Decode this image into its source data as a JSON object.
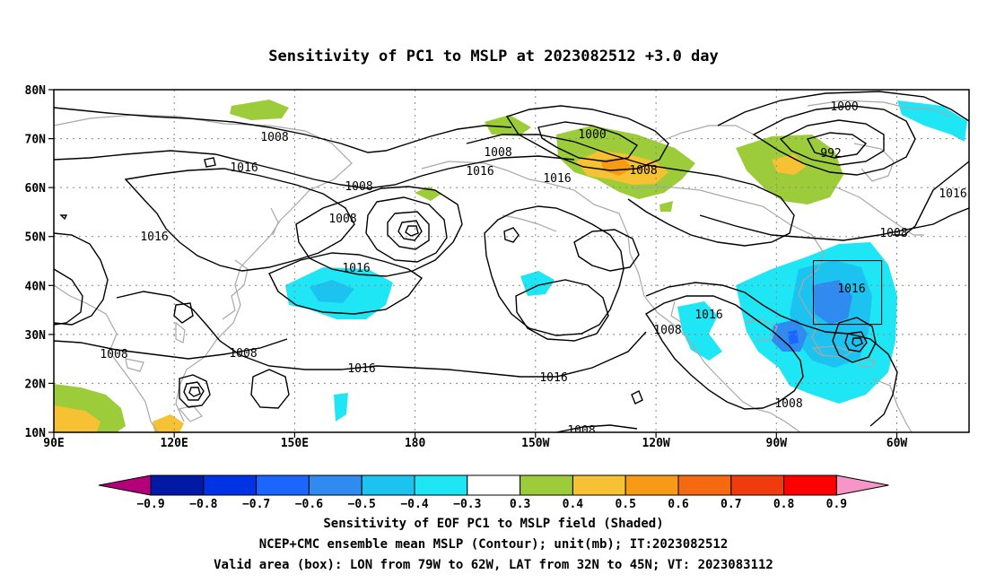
{
  "title": "Sensitivity of PC1 to MSLP at 2023082512 +3.0 day",
  "axes": {
    "lat_labels": [
      "80N",
      "70N",
      "60N",
      "50N",
      "40N",
      "30N",
      "20N",
      "10N"
    ],
    "lon_labels": [
      "90E",
      "120E",
      "150E",
      "180",
      "150W",
      "120W",
      "90W",
      "60W"
    ]
  },
  "colorbar": {
    "ticks": [
      "-0.9",
      "-0.8",
      "-0.7",
      "-0.6",
      "-0.5",
      "-0.4",
      "-0.3",
      "0.3",
      "0.4",
      "0.5",
      "0.6",
      "0.7",
      "0.8",
      "0.9"
    ],
    "colors": [
      "#b3007a",
      "#0019a6",
      "#0033e6",
      "#1a66ff",
      "#2f8bf0",
      "#1cc3f0",
      "#1ee6f5",
      "#ffffff",
      "#9ccc3a",
      "#f6c233",
      "#f79a16",
      "#f56a10",
      "#f03c0c",
      "#ff0000",
      "#f595c8"
    ]
  },
  "contour_labels": {
    "c1": "1008",
    "c2": "1016",
    "c3": "1008",
    "c4": "1008",
    "c5": "1016",
    "c6": "1016",
    "c7": "1008",
    "c8": "1008",
    "c9": "1016",
    "c10": "1008",
    "c11": "1016",
    "c12": "1000",
    "c13": "1008",
    "c14": "1016",
    "c15": "1016",
    "c16": "1016",
    "c17": "1008",
    "c18": "1000",
    "c19": "992",
    "c20": "1016",
    "c21": "1008",
    "c22": "1016",
    "c23": "1008",
    "c24": "1016",
    "c25": "1008"
  },
  "captions": {
    "line1": "Sensitivity of EOF PC1 to MSLP field (Shaded)",
    "line2": "NCEP+CMC ensemble mean MSLP (Contour); unit(mb); IT:2023082512",
    "line3": "Valid area (box): LON from 79W to 62W, LAT from 32N to 45N; VT: 2023083112"
  },
  "valid_area": {
    "lon_from": "79W",
    "lon_to": "62W",
    "lat_from": "32N",
    "lat_to": "45N"
  },
  "icons": {
    "colorbar_low_end": "triangle-left",
    "colorbar_high_end": "triangle-right"
  }
}
